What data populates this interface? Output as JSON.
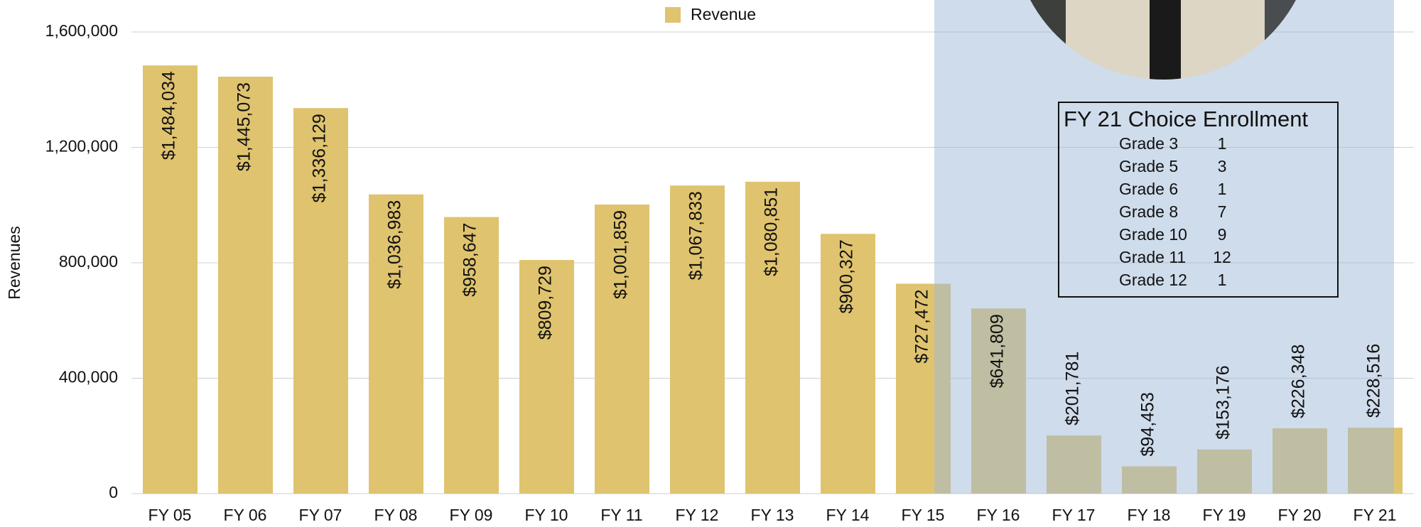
{
  "chart_data": {
    "type": "bar",
    "categories": [
      "FY 05",
      "FY 06",
      "FY 07",
      "FY 08",
      "FY 09",
      "FY 10",
      "FY 11",
      "FY 12",
      "FY 13",
      "FY 14",
      "FY 15",
      "FY 16",
      "FY 17",
      "FY 18",
      "FY 19",
      "FY 20",
      "FY 21"
    ],
    "series": [
      {
        "name": "Revenue",
        "color": "#dfc36e",
        "values": [
          1484034,
          1445073,
          1336129,
          1036983,
          958647,
          809729,
          1001859,
          1067833,
          1080851,
          900327,
          727472,
          641809,
          201781,
          94453,
          153176,
          226348,
          228516
        ],
        "value_labels": [
          "$1,484,034",
          "$1,445,073",
          "$1,336,129",
          "$1,036,983",
          "$958,647",
          "$809,729",
          "$1,001,859",
          "$1,067,833",
          "$1,080,851",
          "$900,327",
          "$727,472",
          "$641,809",
          "$201,781",
          "$94,453",
          "$153,176",
          "$226,348",
          "$228,516"
        ]
      }
    ],
    "y_label": "Revenues",
    "ylim": [
      0,
      1600000
    ],
    "yticks": [
      0,
      {
        "value": 400000,
        "label": "400,000"
      },
      {
        "value": 800000,
        "label": "800,000"
      },
      {
        "value": 1200000,
        "label": "1,200,000"
      },
      {
        "value": 1600000,
        "label": "1,600,000"
      }
    ],
    "grid": true,
    "legend": "top",
    "annotation": {
      "title": "FY 21 Choice Enrollment",
      "rows": [
        [
          "Grade 3",
          "1"
        ],
        [
          "Grade 5",
          "3"
        ],
        [
          "Grade 6",
          "1"
        ],
        [
          "Grade 8",
          "7"
        ],
        [
          "Grade 10",
          "9"
        ],
        [
          "Grade 11",
          "12"
        ],
        [
          "Grade 12",
          "1"
        ]
      ]
    }
  }
}
